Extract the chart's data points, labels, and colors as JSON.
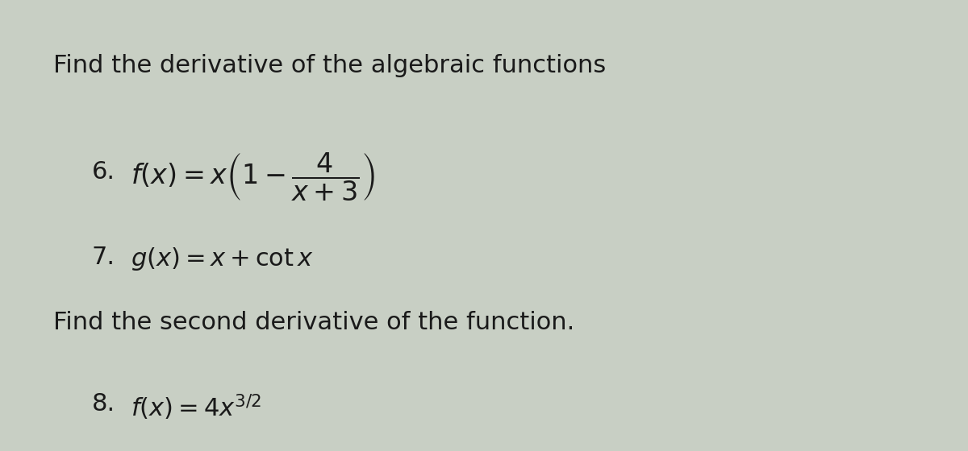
{
  "background_color": "#c8cfc4",
  "text_color": "#1a1a1a",
  "title_line": "Find the derivative of the algebraic functions",
  "item6_label": "6.",
  "item6_math": "$f(x) = x\\left(1 - \\dfrac{4}{x+3}\\right)$",
  "item7_label": "7.",
  "item7_math": "$g(x) = x + \\cot x$",
  "second_deriv_line": "Find the second derivative of the function.",
  "item8_label": "8.",
  "item8_math": "$f(x) = 4x^{3/2}$",
  "title_fontsize": 22,
  "item_fontsize": 22,
  "label_fontsize": 22
}
